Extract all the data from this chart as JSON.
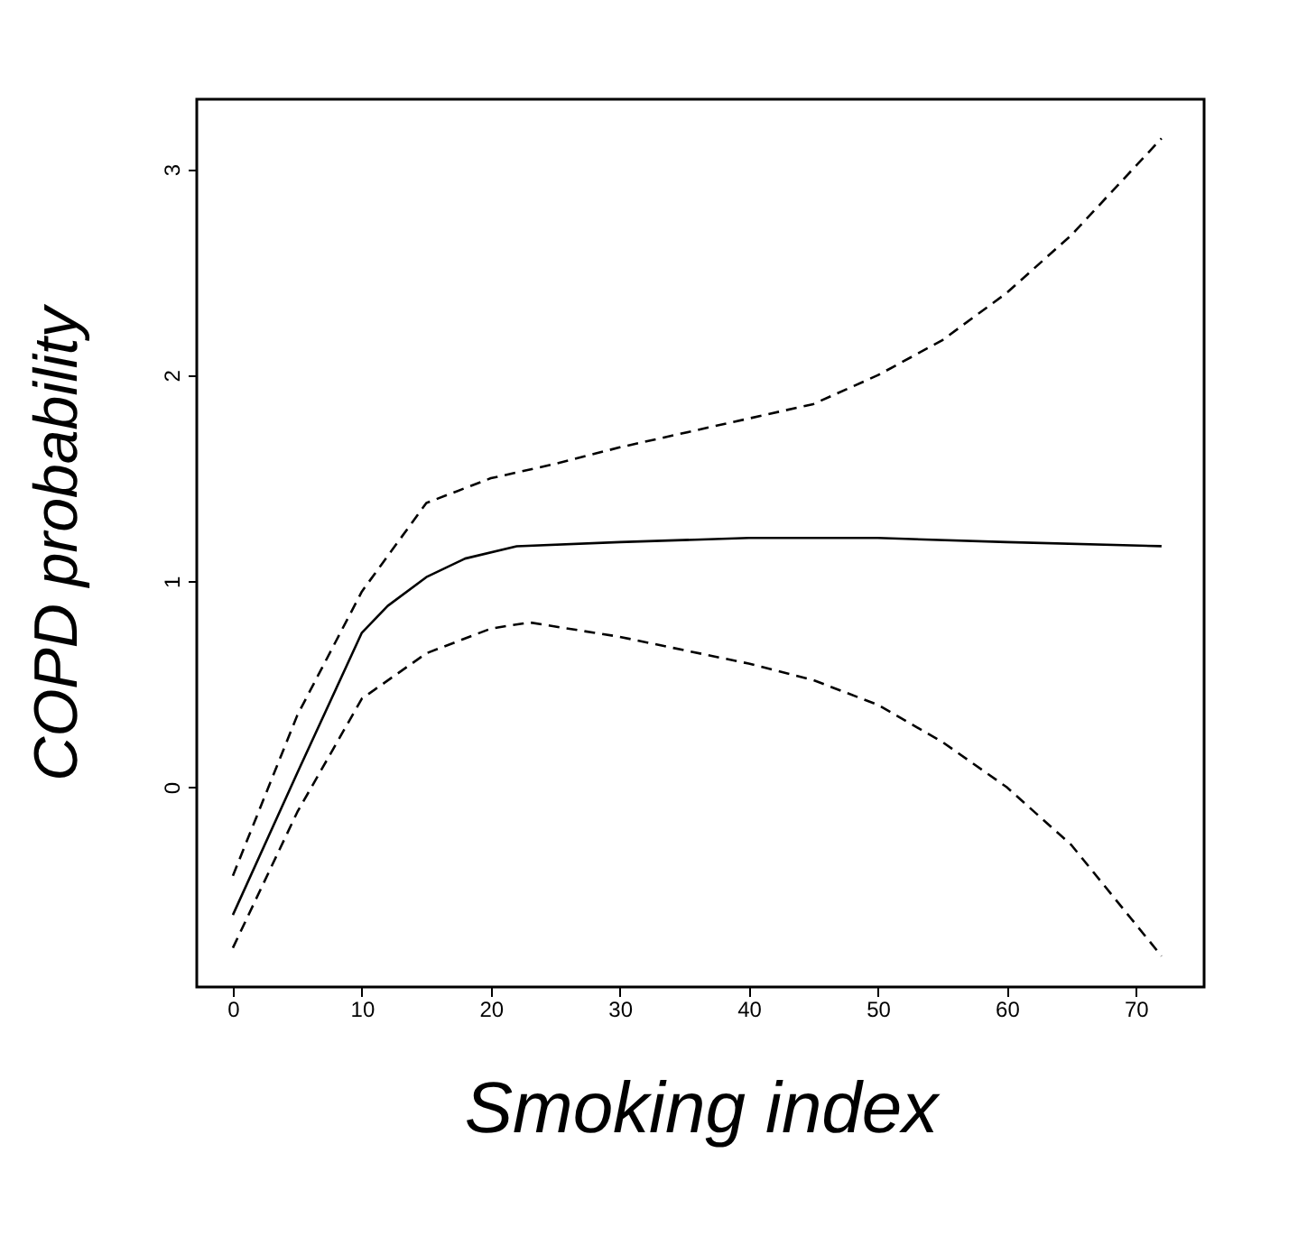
{
  "chart_data": {
    "type": "line",
    "xlabel": "Smoking index",
    "ylabel": "COPD probability",
    "xlim": [
      -2.8,
      75.3
    ],
    "ylim": [
      -0.97,
      3.34
    ],
    "xticks": [
      0,
      10,
      20,
      30,
      40,
      50,
      60,
      70
    ],
    "yticks": [
      0,
      1,
      2,
      3
    ],
    "grid": false,
    "marker": "none",
    "series": [
      {
        "color": "#000000",
        "line_style": "solid",
        "x": [
          0,
          5,
          10,
          12,
          15,
          18,
          22,
          30,
          40,
          50,
          60,
          72
        ],
        "values": [
          -0.62,
          0.07,
          0.75,
          0.88,
          1.02,
          1.11,
          1.17,
          1.19,
          1.21,
          1.21,
          1.19,
          1.17
        ]
      },
      {
        "color": "#000000",
        "line_style": "dashed",
        "x": [
          0,
          5,
          10,
          15,
          20,
          25,
          30,
          40,
          45,
          50,
          55,
          60,
          65,
          72
        ],
        "values": [
          -0.43,
          0.35,
          0.95,
          1.38,
          1.5,
          1.57,
          1.65,
          1.79,
          1.86,
          2.0,
          2.17,
          2.4,
          2.68,
          3.15
        ]
      },
      {
        "color": "#000000",
        "line_style": "dashed",
        "x": [
          0,
          5,
          10,
          15,
          20,
          23,
          30,
          40,
          45,
          50,
          55,
          60,
          65,
          72
        ],
        "values": [
          -0.78,
          -0.12,
          0.43,
          0.65,
          0.77,
          0.8,
          0.73,
          0.6,
          0.52,
          0.4,
          0.22,
          0.0,
          -0.28,
          -0.82
        ]
      }
    ]
  }
}
